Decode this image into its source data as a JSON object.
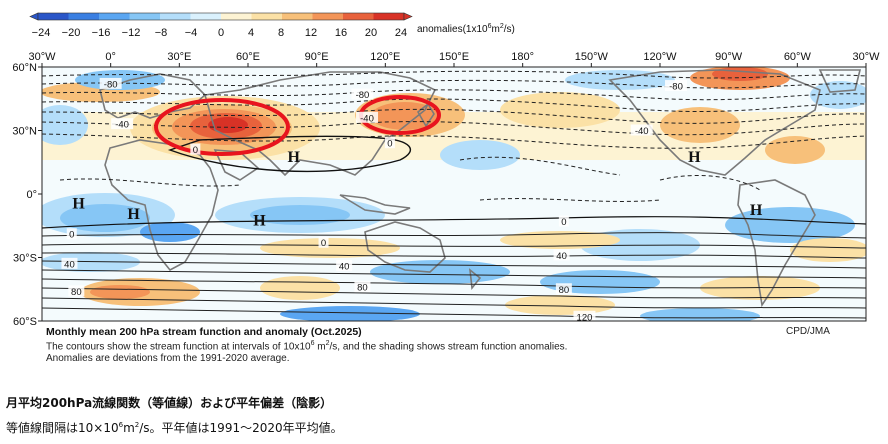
{
  "colorbar": {
    "ticks": [
      "−24",
      "−20",
      "−16",
      "−12",
      "−8",
      "−4",
      "0",
      "4",
      "8",
      "12",
      "16",
      "20",
      "24"
    ],
    "colors": [
      "#2a56c8",
      "#3a7fe2",
      "#5aa6f2",
      "#86c6f5",
      "#b4defa",
      "#daf1fd",
      "#fdf3d3",
      "#fbe1a6",
      "#f7c07a",
      "#f39558",
      "#e8623c",
      "#d83226"
    ],
    "unit_pre": "anomalies(1x10",
    "unit_sup1": "6",
    "unit_mid": "m",
    "unit_sup2": "2",
    "unit_post": "/s)"
  },
  "axes": {
    "lon_labels": [
      "30°W",
      "0°",
      "30°E",
      "60°E",
      "90°E",
      "120°E",
      "150°E",
      "180°",
      "150°W",
      "120°W",
      "90°W",
      "60°W",
      "30°W"
    ],
    "lat_labels": [
      "60°N",
      "30°N",
      "0°",
      "30°S",
      "60°S"
    ]
  },
  "map": {
    "contour_labels": [
      {
        "text": "-80",
        "lon": 0,
        "lat": 52
      },
      {
        "text": "-40",
        "lon": 5,
        "lat": 33
      },
      {
        "text": "0",
        "lon": 37,
        "lat": 21
      },
      {
        "text": "-80",
        "lon": 110,
        "lat": 47
      },
      {
        "text": "-40",
        "lon": 112,
        "lat": 36
      },
      {
        "text": "0",
        "lon": 122,
        "lat": 24
      },
      {
        "text": "-80",
        "lon": -113,
        "lat": 51
      },
      {
        "text": "-40",
        "lon": -128,
        "lat": 30
      },
      {
        "text": "0",
        "lon": -17,
        "lat": -19
      },
      {
        "text": "40",
        "lon": -18,
        "lat": -33
      },
      {
        "text": "80",
        "lon": -15,
        "lat": -46
      },
      {
        "text": "0",
        "lon": 93,
        "lat": -23
      },
      {
        "text": "40",
        "lon": 102,
        "lat": -34
      },
      {
        "text": "80",
        "lon": 110,
        "lat": -44
      },
      {
        "text": "0",
        "lon": -162,
        "lat": -13
      },
      {
        "text": "40",
        "lon": -163,
        "lat": -29
      },
      {
        "text": "80",
        "lon": -162,
        "lat": -45
      },
      {
        "text": "120",
        "lon": -153,
        "lat": -58
      }
    ],
    "highs": [
      {
        "text": "H",
        "lon": 80,
        "lat": 18
      },
      {
        "text": "H",
        "lon": -14,
        "lat": -4
      },
      {
        "text": "H",
        "lon": 10,
        "lat": -9
      },
      {
        "text": "H",
        "lon": 65,
        "lat": -12
      },
      {
        "text": "H",
        "lon": -105,
        "lat": 18
      },
      {
        "text": "H",
        "lon": -78,
        "lat": -7
      }
    ],
    "highlight_color": "#e8141e"
  },
  "caption": {
    "title": "Monthly mean 200 hPa stream function and anomaly (Oct.2025)",
    "line1_pre": "The contours show the stream function at intervals of 10x10",
    "line1_sup1": "6",
    "line1_mid": " m",
    "line1_sup2": "2",
    "line1_post": "/s, and the shading shows stream function anomalies.",
    "line2": "Anomalies are deviations from the 1991-2020 average.",
    "credit": "CPD/JMA"
  },
  "jp": {
    "title": "月平均200hPa流線関数（等値線）および平年偏差（陰影）",
    "note_pre": "等値線間隔は10×10",
    "note_sup1": "6",
    "note_mid": "m",
    "note_sup2": "2",
    "note_post": "/s。平年値は1991～2020年平均値。"
  }
}
